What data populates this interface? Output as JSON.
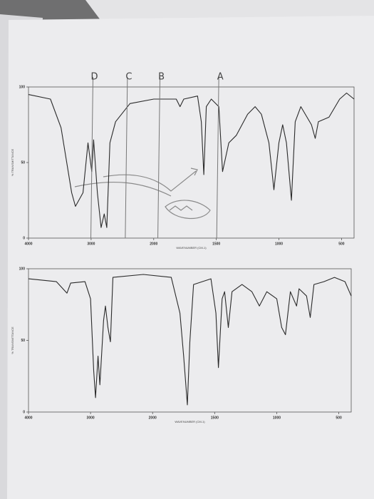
{
  "chart_data": [
    {
      "type": "line",
      "x_label": "WAVENUMBER (CM-1)",
      "y_label": "% TRANSMITTANCE",
      "xlim": [
        4000,
        400
      ],
      "xticks": [
        4000,
        3000,
        2000,
        1500,
        1000,
        500
      ],
      "ylim": [
        0,
        100
      ],
      "yticks": [
        0,
        50,
        100
      ],
      "color": "#2a2a2a",
      "x": [
        4000,
        3650,
        3480,
        3310,
        3250,
        3130,
        3050,
        2990,
        2960,
        2900,
        2840,
        2790,
        2750,
        2700,
        2610,
        2380,
        2000,
        1820,
        1790,
        1760,
        1650,
        1620,
        1600,
        1580,
        1540,
        1480,
        1450,
        1400,
        1340,
        1250,
        1190,
        1140,
        1080,
        1040,
        1000,
        970,
        940,
        900,
        870,
        825,
        740,
        710,
        685,
        600,
        515,
        460,
        400
      ],
      "values": [
        95,
        92,
        73,
        30,
        21,
        30,
        63,
        44,
        65,
        30,
        7,
        16,
        7,
        63,
        77,
        89,
        92,
        92,
        87,
        92,
        94,
        77,
        42,
        87,
        92,
        87,
        44,
        63,
        68,
        82,
        87,
        82,
        63,
        32,
        63,
        75,
        63,
        25,
        77,
        87,
        75,
        66,
        77,
        80,
        92,
        96,
        92
      ],
      "annotations": [
        {
          "text": "D",
          "x": 2970
        },
        {
          "text": "C",
          "x": 2420
        },
        {
          "text": "B",
          "x": 1950
        },
        {
          "text": "A",
          "x": 1480
        }
      ]
    },
    {
      "type": "line",
      "x_label": "WAVENUMBER (CM-1)",
      "y_label": "% TRANSMITTANCE",
      "xlim": [
        4000,
        400
      ],
      "xticks": [
        4000,
        3000,
        2000,
        1500,
        1000,
        500
      ],
      "ylim": [
        0,
        100
      ],
      "yticks": [
        0,
        50,
        100
      ],
      "color": "#2a2a2a",
      "x": [
        4000,
        3550,
        3380,
        3320,
        3090,
        3000,
        2950,
        2920,
        2880,
        2850,
        2790,
        2760,
        2720,
        2680,
        2640,
        2150,
        1850,
        1780,
        1750,
        1720,
        1700,
        1670,
        1530,
        1490,
        1470,
        1440,
        1420,
        1390,
        1360,
        1280,
        1200,
        1140,
        1080,
        1000,
        960,
        930,
        890,
        840,
        820,
        760,
        730,
        700,
        620,
        535,
        450,
        400
      ],
      "values": [
        93,
        91,
        83,
        90,
        91,
        79,
        29,
        10,
        39,
        19,
        64,
        74,
        59,
        49,
        94,
        96,
        94,
        69,
        39,
        5,
        49,
        89,
        93,
        69,
        31,
        79,
        84,
        59,
        84,
        89,
        84,
        74,
        84,
        79,
        59,
        54,
        84,
        74,
        86,
        81,
        66,
        89,
        91,
        94,
        91,
        81
      ]
    }
  ]
}
